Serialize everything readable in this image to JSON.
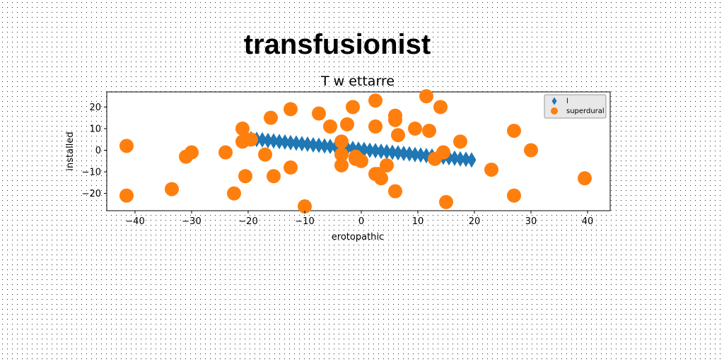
{
  "chart_data": {
    "type": "scatter",
    "suptitle": "transfusionist",
    "title": "T w ettarre",
    "xlabel": "erotopathic",
    "ylabel": "installed",
    "xlim": [
      -45,
      44
    ],
    "ylim": [
      -28,
      27
    ],
    "xticks": [
      -40,
      -30,
      -20,
      -10,
      0,
      10,
      20,
      30,
      40
    ],
    "yticks": [
      -20,
      -10,
      0,
      10,
      20
    ],
    "legend_position": "top-right",
    "series": [
      {
        "name": "l",
        "marker": "diamond",
        "color": "#1f77b4",
        "x": [
          -19.5,
          -18.5,
          -17.5,
          -16.5,
          -15.5,
          -14.5,
          -13.5,
          -12.5,
          -11.5,
          -10.5,
          -9.5,
          -8.5,
          -7.5,
          -6.5,
          -5.5,
          -4.5,
          -3.5,
          -2.5,
          -1.5,
          -0.5,
          0.5,
          1.5,
          2.5,
          3.5,
          4.5,
          5.5,
          6.5,
          7.5,
          8.5,
          9.5,
          10.5,
          11.5,
          12.5,
          13.5,
          14.5,
          15.5,
          16.5,
          17.5,
          18.5,
          19.5
        ],
        "y": [
          5.3,
          5.0,
          4.8,
          4.5,
          4.3,
          4.0,
          3.8,
          3.5,
          3.3,
          3.0,
          2.8,
          2.5,
          2.3,
          2.0,
          1.8,
          1.5,
          1.3,
          1.0,
          0.8,
          0.5,
          0.3,
          0.0,
          -0.2,
          -0.5,
          -0.7,
          -1.0,
          -1.2,
          -1.5,
          -1.7,
          -2.0,
          -2.2,
          -2.5,
          -2.7,
          -3.0,
          -3.2,
          -3.5,
          -3.7,
          -4.0,
          -4.2,
          -4.5
        ]
      },
      {
        "name": "superdural",
        "marker": "circle",
        "color": "#ff7f0e",
        "x": [
          -41.5,
          -41.5,
          -33.5,
          -31,
          -30,
          -24,
          -22.5,
          -21,
          -21,
          -20.5,
          -19.5,
          -17,
          -16,
          -15.5,
          -12.5,
          -12.5,
          -10,
          -7.5,
          -5.5,
          -3.5,
          -3.5,
          -3.5,
          -2.5,
          -1.5,
          -1,
          -1,
          0,
          2.5,
          2.5,
          2.5,
          3,
          3.5,
          4.5,
          6,
          6,
          6,
          6.5,
          9.5,
          11.5,
          12,
          13,
          14,
          14.5,
          15,
          17.5,
          23,
          27,
          27,
          30,
          39.5
        ],
        "y": [
          2,
          -21,
          -18,
          -3,
          -1,
          -1,
          -20,
          4,
          10,
          -12,
          5,
          -2,
          15,
          -12,
          -8,
          19,
          -26,
          17,
          11,
          4,
          -2,
          -7,
          12,
          20,
          -3,
          -4,
          -5,
          23,
          11,
          -11,
          -11,
          -13,
          -7,
          16,
          14,
          -19,
          7,
          10,
          25,
          9,
          -4,
          20,
          -1,
          -24,
          4,
          -9,
          9,
          -21,
          0,
          -13
        ]
      }
    ]
  }
}
